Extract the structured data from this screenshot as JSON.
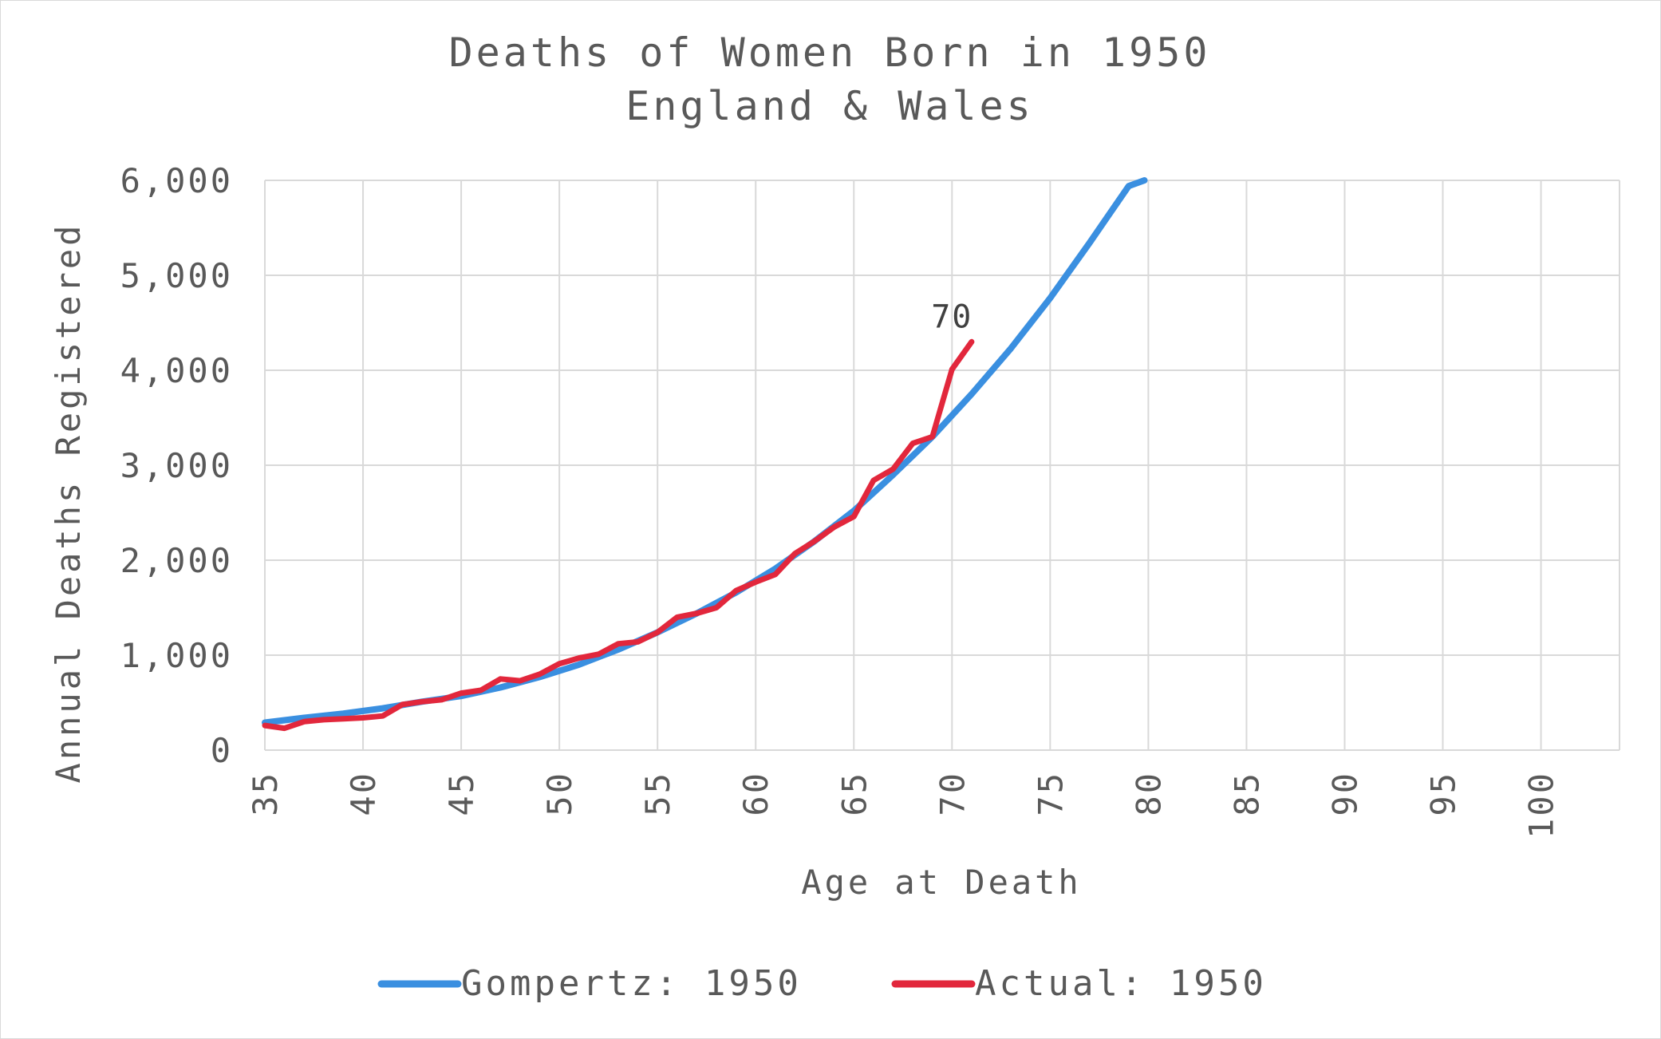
{
  "chart_data": {
    "type": "line",
    "title": "Deaths of Women Born in 1950",
    "subtitle": "England & Wales",
    "xlabel": "Age at Death",
    "ylabel": "Annual Deaths Registered",
    "xlim": [
      35,
      104
    ],
    "ylim": [
      0,
      6000
    ],
    "x_ticks": [
      "35",
      "40",
      "45",
      "50",
      "55",
      "60",
      "65",
      "70",
      "75",
      "80",
      "85",
      "90",
      "95",
      "100"
    ],
    "y_ticks": [
      "0",
      "1,000",
      "2,000",
      "3,000",
      "4,000",
      "5,000",
      "6,000"
    ],
    "grid": true,
    "legend_position": "bottom",
    "series": [
      {
        "name": "Gompertz: 1950",
        "color": "#3a8fe0",
        "x": [
          35,
          37,
          39,
          41,
          43,
          45,
          47,
          49,
          51,
          53,
          55,
          57,
          59,
          61,
          63,
          65,
          67,
          69,
          71,
          73,
          75,
          77,
          79,
          79.8
        ],
        "y": [
          290,
          340,
          385,
          440,
          510,
          570,
          660,
          770,
          900,
          1060,
          1240,
          1440,
          1660,
          1910,
          2200,
          2520,
          2900,
          3300,
          3750,
          4230,
          4760,
          5340,
          5940,
          6000
        ]
      },
      {
        "name": "Actual: 1950",
        "color": "#e2273c",
        "x": [
          35,
          36,
          37,
          38,
          39,
          40,
          41,
          42,
          43,
          44,
          45,
          46,
          47,
          48,
          49,
          50,
          51,
          52,
          53,
          54,
          55,
          56,
          57,
          58,
          59,
          60,
          61,
          62,
          63,
          64,
          65,
          66,
          67,
          68,
          69,
          70,
          71
        ],
        "y": [
          260,
          230,
          300,
          320,
          330,
          340,
          360,
          480,
          510,
          530,
          600,
          630,
          750,
          730,
          800,
          910,
          970,
          1010,
          1120,
          1140,
          1240,
          1400,
          1440,
          1500,
          1680,
          1770,
          1850,
          2070,
          2200,
          2350,
          2460,
          2840,
          2960,
          3230,
          3300,
          4010,
          4300
        ]
      }
    ],
    "annotations": [
      {
        "text": "70",
        "x": 70,
        "y": 4300
      }
    ]
  }
}
